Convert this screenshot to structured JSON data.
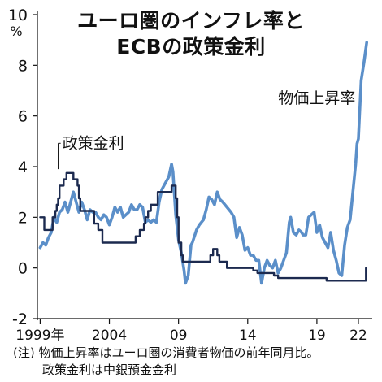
{
  "titles": {
    "line1": "ユーロ圏のインフレ率と",
    "line2": "ECBの政策金利"
  },
  "notes": {
    "line1": "(注) 物価上昇率はユーロ圏の消費者物価の前年同月比。",
    "line2": "政策金利は中銀預金金利"
  },
  "chart_data": {
    "type": "line",
    "title": "ユーロ圏のインフレ率とECBの政策金利",
    "yunit": "%",
    "ylim": [
      -2,
      10
    ],
    "yticks": [
      -2,
      0,
      2,
      4,
      6,
      8,
      10
    ],
    "xlim": [
      1998.8,
      2023.0
    ],
    "xticks": [
      {
        "value": 1999,
        "label": "1999年"
      },
      {
        "value": 2004,
        "label": "2004"
      },
      {
        "value": 2009,
        "label": "09"
      },
      {
        "value": 2014,
        "label": "14"
      },
      {
        "value": 2019,
        "label": "19"
      },
      {
        "value": 2022,
        "label": "22"
      }
    ],
    "colors": {
      "inflation": "#5b8fc9",
      "policy_rate": "#1c2a4f"
    },
    "series": [
      {
        "name": "物価上昇率",
        "key": "inflation",
        "points": [
          [
            1999.0,
            0.8
          ],
          [
            1999.2,
            1.0
          ],
          [
            1999.4,
            0.9
          ],
          [
            1999.6,
            1.2
          ],
          [
            1999.8,
            1.4
          ],
          [
            2000.0,
            2.0
          ],
          [
            2000.2,
            1.8
          ],
          [
            2000.4,
            2.2
          ],
          [
            2000.6,
            2.3
          ],
          [
            2000.8,
            2.6
          ],
          [
            2001.0,
            2.2
          ],
          [
            2001.2,
            2.6
          ],
          [
            2001.4,
            3.0
          ],
          [
            2001.6,
            2.6
          ],
          [
            2001.8,
            2.2
          ],
          [
            2002.0,
            2.6
          ],
          [
            2002.2,
            2.3
          ],
          [
            2002.4,
            1.9
          ],
          [
            2002.6,
            2.3
          ],
          [
            2002.8,
            2.2
          ],
          [
            2003.0,
            2.2
          ],
          [
            2003.2,
            2.0
          ],
          [
            2003.4,
            1.9
          ],
          [
            2003.6,
            2.1
          ],
          [
            2003.8,
            2.0
          ],
          [
            2004.0,
            1.7
          ],
          [
            2004.2,
            2.0
          ],
          [
            2004.4,
            2.4
          ],
          [
            2004.6,
            2.2
          ],
          [
            2004.8,
            2.4
          ],
          [
            2005.0,
            2.0
          ],
          [
            2005.2,
            2.1
          ],
          [
            2005.4,
            2.2
          ],
          [
            2005.6,
            2.5
          ],
          [
            2005.8,
            2.3
          ],
          [
            2006.0,
            2.3
          ],
          [
            2006.2,
            2.5
          ],
          [
            2006.4,
            2.4
          ],
          [
            2006.6,
            1.8
          ],
          [
            2006.8,
            1.9
          ],
          [
            2007.0,
            1.8
          ],
          [
            2007.2,
            1.9
          ],
          [
            2007.4,
            1.8
          ],
          [
            2007.6,
            2.6
          ],
          [
            2007.8,
            3.1
          ],
          [
            2008.0,
            3.3
          ],
          [
            2008.3,
            3.6
          ],
          [
            2008.5,
            4.1
          ],
          [
            2008.6,
            3.8
          ],
          [
            2008.8,
            2.1
          ],
          [
            2009.0,
            1.1
          ],
          [
            2009.2,
            0.6
          ],
          [
            2009.4,
            -0.1
          ],
          [
            2009.5,
            -0.6
          ],
          [
            2009.7,
            -0.3
          ],
          [
            2009.9,
            0.9
          ],
          [
            2010.0,
            1.0
          ],
          [
            2010.3,
            1.5
          ],
          [
            2010.5,
            1.7
          ],
          [
            2010.8,
            1.9
          ],
          [
            2011.0,
            2.3
          ],
          [
            2011.2,
            2.8
          ],
          [
            2011.4,
            2.7
          ],
          [
            2011.6,
            2.5
          ],
          [
            2011.8,
            3.0
          ],
          [
            2012.0,
            2.7
          ],
          [
            2012.2,
            2.6
          ],
          [
            2012.5,
            2.4
          ],
          [
            2012.8,
            2.2
          ],
          [
            2013.0,
            2.0
          ],
          [
            2013.2,
            1.2
          ],
          [
            2013.4,
            1.6
          ],
          [
            2013.6,
            1.3
          ],
          [
            2013.8,
            0.7
          ],
          [
            2014.0,
            0.8
          ],
          [
            2014.2,
            0.5
          ],
          [
            2014.4,
            0.5
          ],
          [
            2014.6,
            0.3
          ],
          [
            2014.8,
            0.3
          ],
          [
            2015.0,
            -0.6
          ],
          [
            2015.2,
            0.0
          ],
          [
            2015.4,
            0.3
          ],
          [
            2015.6,
            0.1
          ],
          [
            2015.8,
            0.0
          ],
          [
            2016.0,
            0.3
          ],
          [
            2016.2,
            -0.2
          ],
          [
            2016.4,
            0.0
          ],
          [
            2016.6,
            0.3
          ],
          [
            2016.8,
            0.6
          ],
          [
            2017.0,
            1.8
          ],
          [
            2017.1,
            2.0
          ],
          [
            2017.3,
            1.4
          ],
          [
            2017.5,
            1.3
          ],
          [
            2017.7,
            1.5
          ],
          [
            2017.9,
            1.4
          ],
          [
            2018.0,
            1.3
          ],
          [
            2018.2,
            1.3
          ],
          [
            2018.4,
            2.0
          ],
          [
            2018.6,
            2.1
          ],
          [
            2018.8,
            2.2
          ],
          [
            2019.0,
            1.4
          ],
          [
            2019.2,
            1.7
          ],
          [
            2019.4,
            1.2
          ],
          [
            2019.6,
            1.0
          ],
          [
            2019.8,
            0.8
          ],
          [
            2020.0,
            1.4
          ],
          [
            2020.2,
            0.7
          ],
          [
            2020.4,
            0.3
          ],
          [
            2020.6,
            -0.2
          ],
          [
            2020.8,
            -0.3
          ],
          [
            2021.0,
            0.9
          ],
          [
            2021.2,
            1.6
          ],
          [
            2021.4,
            1.9
          ],
          [
            2021.6,
            3.0
          ],
          [
            2021.8,
            4.1
          ],
          [
            2021.9,
            4.9
          ],
          [
            2022.0,
            5.1
          ],
          [
            2022.2,
            7.4
          ],
          [
            2022.4,
            8.1
          ],
          [
            2022.6,
            8.9
          ]
        ]
      },
      {
        "name": "政策金利",
        "key": "policy_rate",
        "points": [
          [
            1999.0,
            2.0
          ],
          [
            1999.3,
            2.0
          ],
          [
            1999.3,
            1.5
          ],
          [
            1999.9,
            1.5
          ],
          [
            1999.9,
            2.0
          ],
          [
            2000.1,
            2.0
          ],
          [
            2000.1,
            2.25
          ],
          [
            2000.2,
            2.25
          ],
          [
            2000.2,
            2.5
          ],
          [
            2000.3,
            2.5
          ],
          [
            2000.3,
            2.75
          ],
          [
            2000.4,
            2.75
          ],
          [
            2000.4,
            3.25
          ],
          [
            2000.7,
            3.25
          ],
          [
            2000.7,
            3.5
          ],
          [
            2000.9,
            3.5
          ],
          [
            2000.9,
            3.75
          ],
          [
            2001.4,
            3.75
          ],
          [
            2001.4,
            3.5
          ],
          [
            2001.7,
            3.5
          ],
          [
            2001.7,
            3.25
          ],
          [
            2001.8,
            3.25
          ],
          [
            2001.8,
            2.75
          ],
          [
            2001.9,
            2.75
          ],
          [
            2001.9,
            2.25
          ],
          [
            2002.9,
            2.25
          ],
          [
            2002.9,
            1.75
          ],
          [
            2003.2,
            1.75
          ],
          [
            2003.2,
            1.5
          ],
          [
            2003.5,
            1.5
          ],
          [
            2003.5,
            1.0
          ],
          [
            2005.9,
            1.0
          ],
          [
            2005.9,
            1.25
          ],
          [
            2006.2,
            1.25
          ],
          [
            2006.2,
            1.5
          ],
          [
            2006.5,
            1.5
          ],
          [
            2006.5,
            1.75
          ],
          [
            2006.6,
            1.75
          ],
          [
            2006.6,
            2.0
          ],
          [
            2006.8,
            2.0
          ],
          [
            2006.8,
            2.25
          ],
          [
            2007.0,
            2.25
          ],
          [
            2007.0,
            2.5
          ],
          [
            2007.5,
            2.5
          ],
          [
            2007.5,
            3.0
          ],
          [
            2008.5,
            3.0
          ],
          [
            2008.5,
            3.25
          ],
          [
            2008.8,
            3.25
          ],
          [
            2008.8,
            2.75
          ],
          [
            2008.9,
            2.75
          ],
          [
            2008.9,
            2.0
          ],
          [
            2009.0,
            2.0
          ],
          [
            2009.0,
            1.0
          ],
          [
            2009.2,
            1.0
          ],
          [
            2009.2,
            0.5
          ],
          [
            2009.3,
            0.5
          ],
          [
            2009.3,
            0.25
          ],
          [
            2011.3,
            0.25
          ],
          [
            2011.3,
            0.5
          ],
          [
            2011.5,
            0.5
          ],
          [
            2011.5,
            0.75
          ],
          [
            2011.8,
            0.75
          ],
          [
            2011.8,
            0.5
          ],
          [
            2011.95,
            0.5
          ],
          [
            2011.95,
            0.25
          ],
          [
            2012.5,
            0.25
          ],
          [
            2012.5,
            0.0
          ],
          [
            2014.4,
            0.0
          ],
          [
            2014.4,
            -0.1
          ],
          [
            2014.7,
            -0.1
          ],
          [
            2014.7,
            -0.2
          ],
          [
            2015.9,
            -0.2
          ],
          [
            2015.9,
            -0.3
          ],
          [
            2016.2,
            -0.3
          ],
          [
            2016.2,
            -0.4
          ],
          [
            2019.7,
            -0.4
          ],
          [
            2019.7,
            -0.5
          ],
          [
            2022.55,
            -0.5
          ],
          [
            2022.55,
            0.0
          ]
        ]
      }
    ],
    "annotations": [
      {
        "text": "政策金利",
        "series": "policy_rate"
      },
      {
        "text": "物価上昇率",
        "series": "inflation"
      }
    ]
  }
}
